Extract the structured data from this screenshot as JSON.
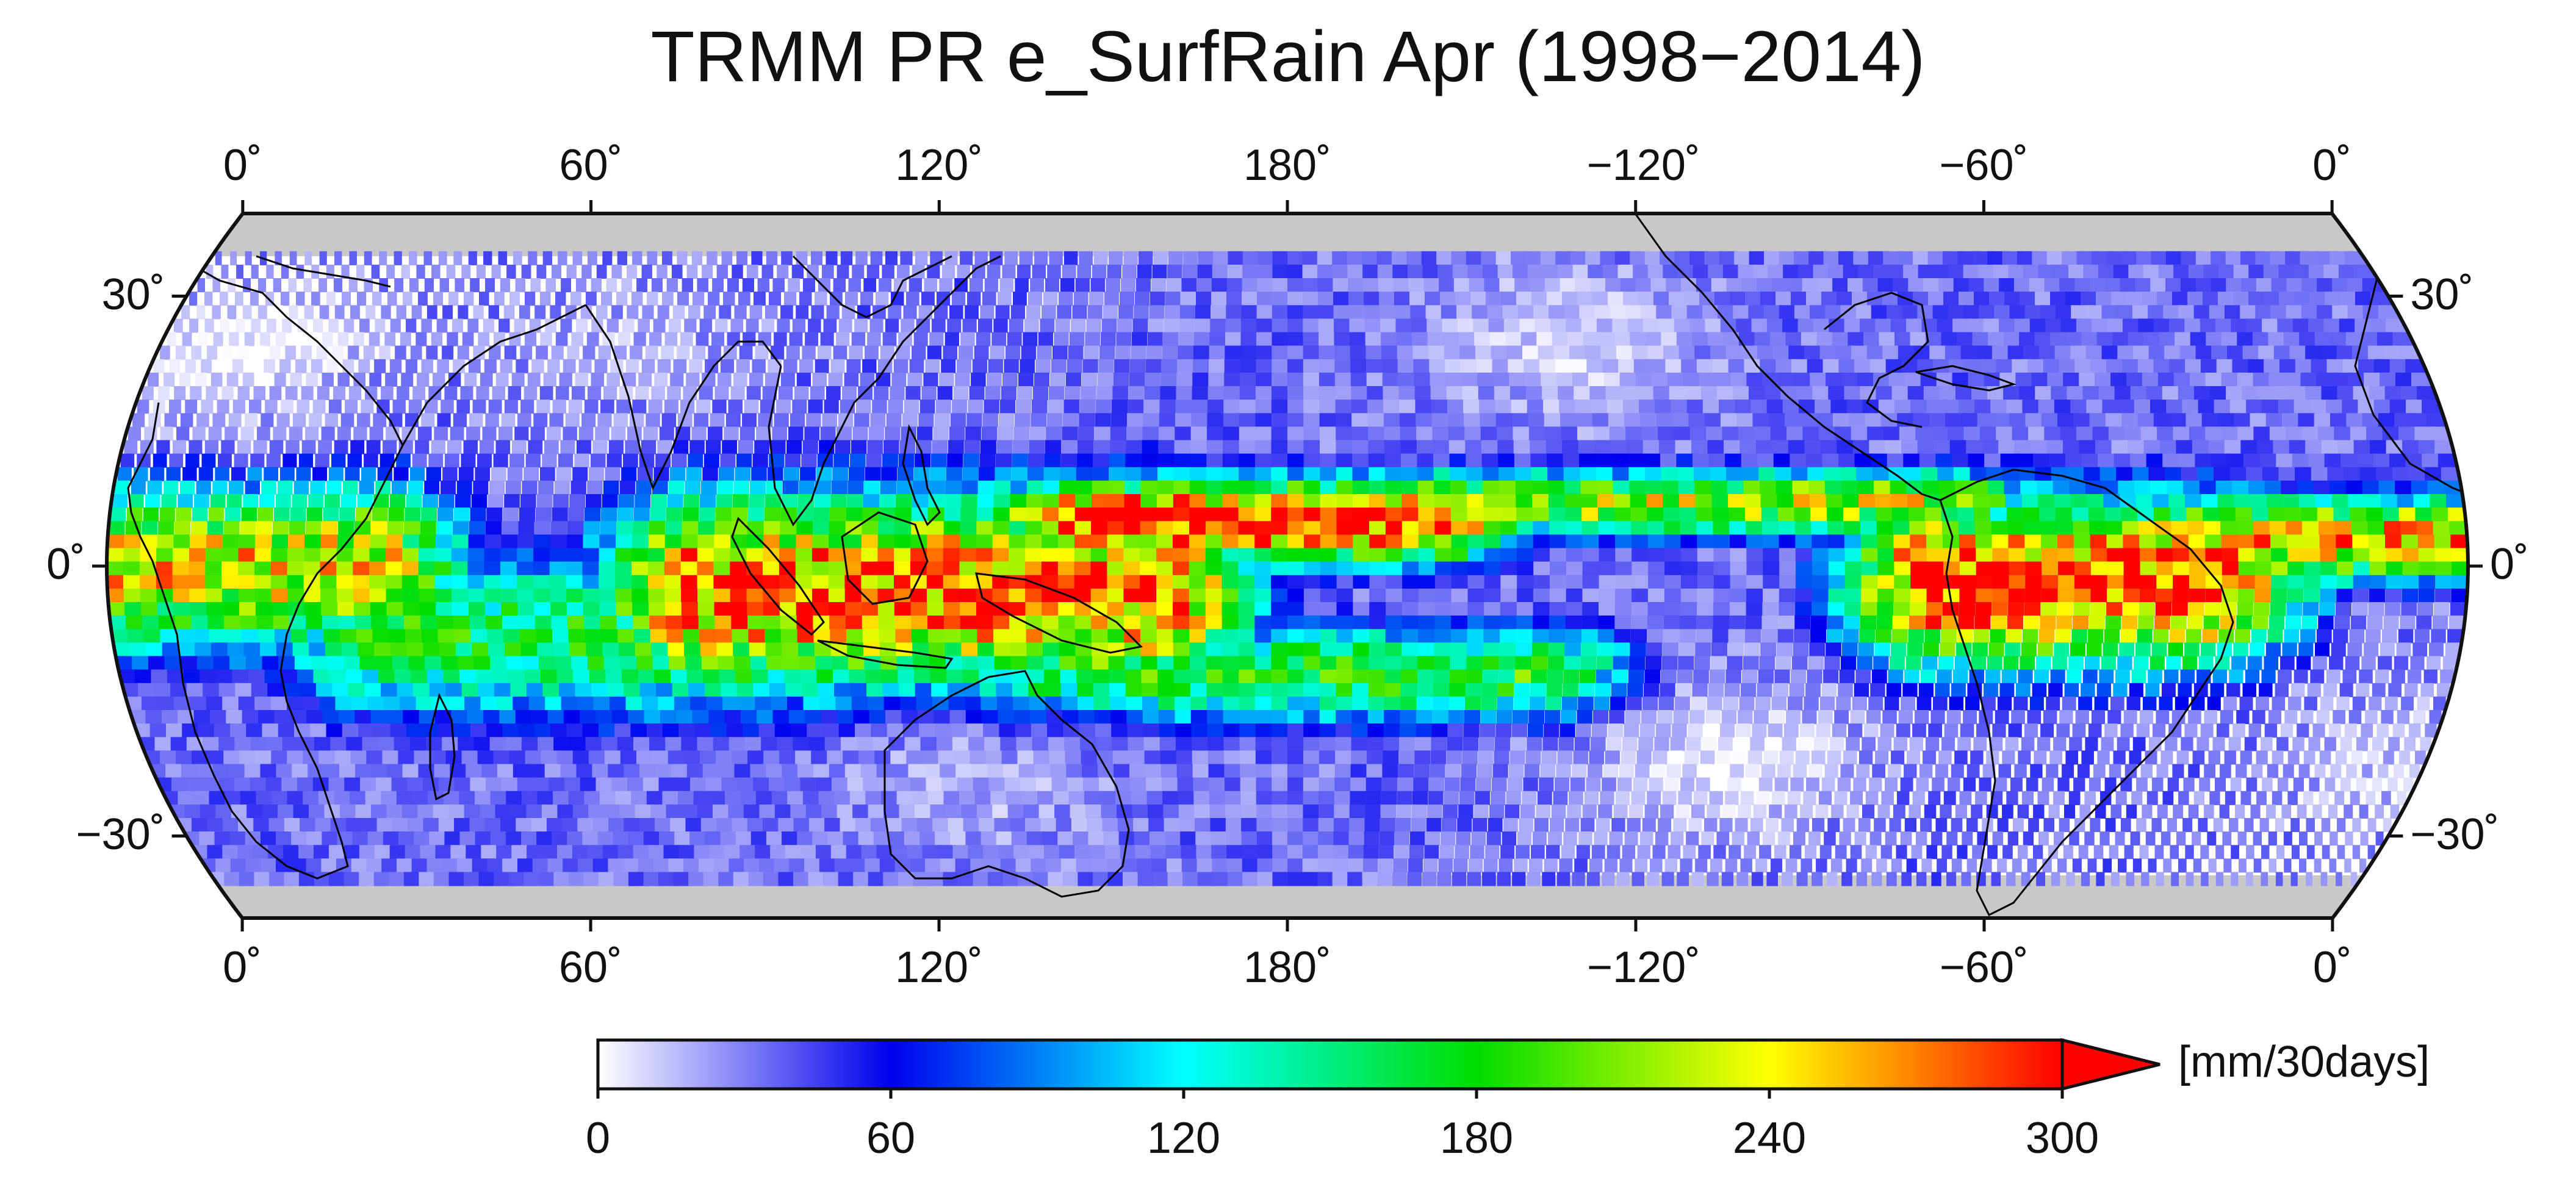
{
  "title": "TRMM PR e_SurfRain Apr (1998−2014)",
  "map": {
    "projection": "robinson-like",
    "lat_range": [
      -36,
      36
    ],
    "lon_range": [
      0,
      360
    ],
    "center_lon": 180,
    "missing_color": "#c8c8c8",
    "top_lon_labels": [
      "0˚",
      "60˚",
      "120˚",
      "180˚",
      "−120˚",
      "−60˚",
      "0˚"
    ],
    "bottom_lon_labels": [
      "0˚",
      "60˚",
      "120˚",
      "180˚",
      "−120˚",
      "−60˚",
      "0˚"
    ],
    "left_lat_labels": [
      "30˚",
      "0˚",
      "−30˚"
    ],
    "right_lat_labels": [
      "30˚",
      "0˚",
      "−30˚"
    ]
  },
  "colorbar": {
    "unit": "[mm/30days]",
    "ticks": [
      "0",
      "60",
      "120",
      "180",
      "240",
      "300"
    ],
    "range": [
      0,
      300
    ],
    "extend": "max",
    "colors": [
      "#ffffff",
      "#0000ee",
      "#00ffff",
      "#00dd00",
      "#ffff00",
      "#ff0000"
    ]
  },
  "chart_data": {
    "type": "heatmap",
    "title": "TRMM PR e_SurfRain Apr (1998−2014)",
    "x_axis": "longitude",
    "y_axis": "latitude",
    "xlim": [
      0,
      360
    ],
    "ylim": [
      -36,
      36
    ],
    "value_range": [
      0,
      300
    ],
    "units": "[mm/30days]",
    "rain_bands": [
      {
        "lon_start": 0,
        "lon_end": 40,
        "lat_center": 0,
        "lat_halfwidth": 10,
        "peak": 240
      },
      {
        "lon_start": 40,
        "lon_end": 90,
        "lat_center": -8,
        "lat_halfwidth": 10,
        "peak": 170
      },
      {
        "lon_start": 90,
        "lon_end": 160,
        "lat_center": -3,
        "lat_halfwidth": 12,
        "peak": 280
      },
      {
        "lon_start": 150,
        "lon_end": 200,
        "lat_center": 5,
        "lat_halfwidth": 5,
        "peak": 300
      },
      {
        "lon_start": 200,
        "lon_end": 280,
        "lat_center": 7,
        "lat_halfwidth": 4,
        "peak": 220
      },
      {
        "lon_start": 280,
        "lon_end": 320,
        "lat_center": -2,
        "lat_halfwidth": 10,
        "peak": 300
      },
      {
        "lon_start": 320,
        "lon_end": 360,
        "lat_center": 3,
        "lat_halfwidth": 5,
        "peak": 260
      },
      {
        "lon_start": 140,
        "lon_end": 220,
        "lat_center": -12,
        "lat_halfwidth": 6,
        "peak": 180
      }
    ],
    "dry_zones": [
      {
        "lon": 15,
        "lat": 24,
        "value": 5
      },
      {
        "lon": 225,
        "lat": 25,
        "value": 10
      },
      {
        "lon": 250,
        "lat": -22,
        "value": 5
      },
      {
        "lon": 355,
        "lat": -22,
        "value": 15
      },
      {
        "lon": 75,
        "lat": 25,
        "value": 20
      },
      {
        "lon": 130,
        "lat": -25,
        "value": 20
      }
    ]
  }
}
